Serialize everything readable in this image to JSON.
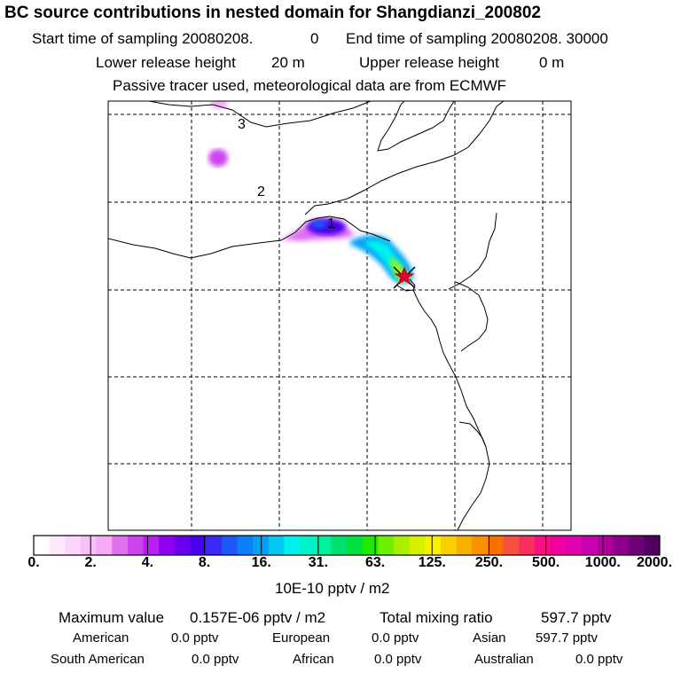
{
  "header": {
    "title": "BC  source contributions in nested domain for Shangdianzi_200802",
    "start_label": "Start time of sampling 20080208.",
    "start_value": "0",
    "end_label": "End time of sampling 20080208. 30000",
    "lower_label": "Lower release height",
    "lower_value": "20 m",
    "upper_label": "Upper release height",
    "upper_value": "0 m",
    "tracer_note": "Passive tracer used, meteorological data are from ECMWF"
  },
  "map": {
    "day_markers": [
      "1",
      "2",
      "3"
    ],
    "station_symbol": "star"
  },
  "colorbar": {
    "ticks": [
      "0.",
      "2.",
      "4.",
      "8.",
      "16.",
      "31.",
      "63.",
      "125.",
      "250.",
      "500.",
      "1000.",
      "2000."
    ],
    "unit": "10E-10 pptv / m2",
    "colors": [
      "#ffffff",
      "#fde8fd",
      "#fcd4fc",
      "#f9bff9",
      "#f5aaf5",
      "#e070f0",
      "#cc44ee",
      "#b81ef0",
      "#9000f0",
      "#6a00f0",
      "#4800f0",
      "#3a28f5",
      "#1e56f8",
      "#0a7ff8",
      "#00a0f5",
      "#00c8f0",
      "#00f0f0",
      "#00f2c8",
      "#00f0a0",
      "#00e070",
      "#00e040",
      "#20e800",
      "#70f000",
      "#a8f000",
      "#d8f000",
      "#f8f000",
      "#f8d000",
      "#f8b000",
      "#f89000",
      "#f87000",
      "#f85040",
      "#f83060",
      "#f81080",
      "#f000a0",
      "#e000b0",
      "#c800b0",
      "#b000a0",
      "#900090",
      "#700078",
      "#500060"
    ]
  },
  "stats": {
    "max_label": "Maximum value",
    "max_value": "0.157E-06 pptv / m2",
    "total_label": "Total mixing ratio",
    "total_value": "597.7 pptv",
    "american_label": "American",
    "american_value": "0.0 pptv",
    "european_label": "European",
    "european_value": "0.0 pptv",
    "asian_label": "Asian",
    "asian_value": "597.7 pptv",
    "south_american_label": "South American",
    "south_american_value": "0.0 pptv",
    "african_label": "African",
    "african_value": "0.0 pptv",
    "australian_label": "Australian",
    "australian_value": "0.0 pptv"
  }
}
